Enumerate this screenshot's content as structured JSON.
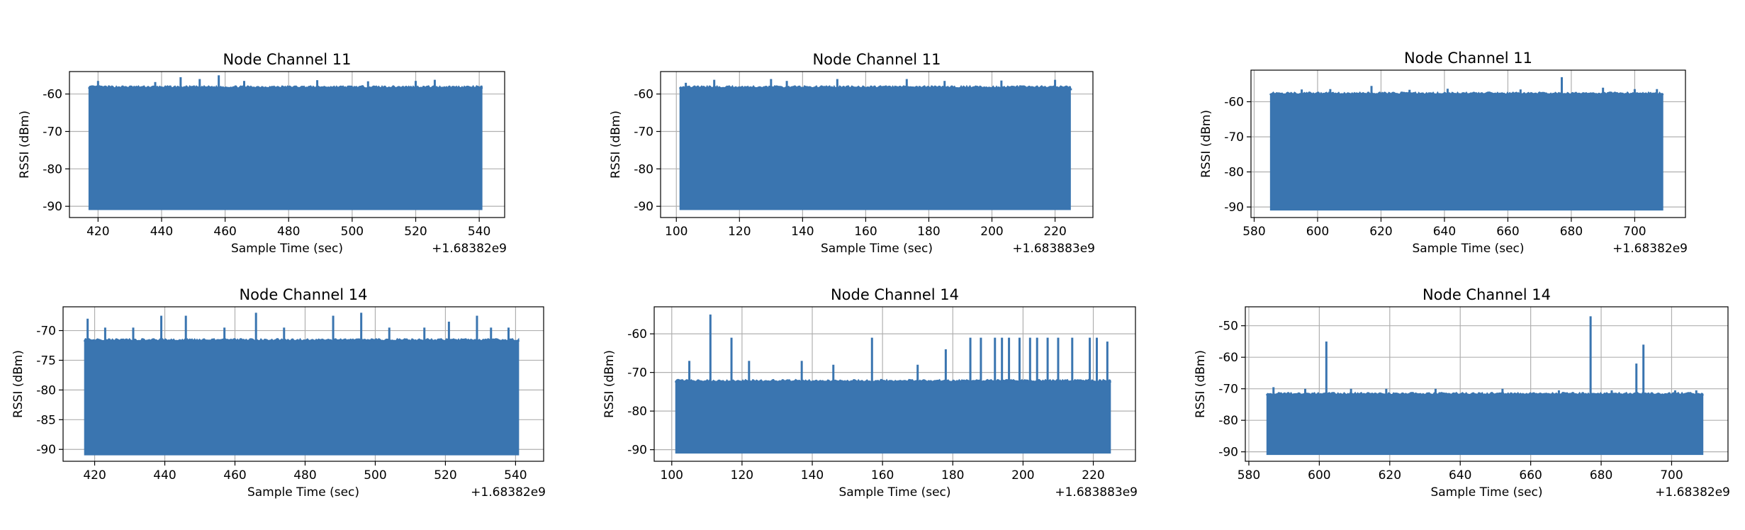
{
  "colors": {
    "series": "#3a75b0",
    "grid": "#b0b0b0",
    "axes": "#000000"
  },
  "chart_data": [
    {
      "type": "line",
      "title": "Node Channel 11",
      "xlabel": "Sample Time (sec)",
      "ylabel": "RSSI (dBm)",
      "x_offset_label": "+1.68382e9",
      "xlim": [
        411,
        548
      ],
      "ylim": [
        -93,
        -54
      ],
      "xticks": [
        420,
        440,
        460,
        480,
        500,
        520,
        540
      ],
      "yticks": [
        -60,
        -70,
        -80,
        -90
      ],
      "grid": true,
      "series": [
        {
          "x_range": [
            417,
            541
          ],
          "floor": -91,
          "ceiling": -58.5,
          "spikes": [
            [
              420,
              -56.5
            ],
            [
              438,
              -56.8
            ],
            [
              446,
              -55.5
            ],
            [
              452,
              -56
            ],
            [
              458,
              -55
            ],
            [
              466,
              -56.5
            ],
            [
              489,
              -56.3
            ],
            [
              505,
              -56.6
            ],
            [
              520,
              -56.5
            ],
            [
              526,
              -56.2
            ]
          ]
        }
      ]
    },
    {
      "type": "line",
      "title": "Node Channel 11",
      "xlabel": "Sample Time (sec)",
      "ylabel": "RSSI (dBm)",
      "x_offset_label": "+1.683883e9",
      "xlim": [
        95,
        232
      ],
      "ylim": [
        -93,
        -54
      ],
      "xticks": [
        100,
        120,
        140,
        160,
        180,
        200,
        220
      ],
      "yticks": [
        -60,
        -70,
        -80,
        -90
      ],
      "grid": true,
      "series": [
        {
          "x_range": [
            101,
            225
          ],
          "floor": -91,
          "ceiling": -58.5,
          "spikes": [
            [
              103,
              -57
            ],
            [
              112,
              -56.2
            ],
            [
              130,
              -56
            ],
            [
              135,
              -56.5
            ],
            [
              151,
              -56
            ],
            [
              173,
              -56
            ],
            [
              185,
              -56.5
            ],
            [
              203,
              -56.4
            ],
            [
              220,
              -56.2
            ],
            [
              225,
              -59
            ]
          ]
        }
      ]
    },
    {
      "type": "line",
      "title": "Node Channel 11",
      "xlabel": "Sample Time (sec)",
      "ylabel": "RSSI (dBm)",
      "x_offset_label": "+1.68382e9",
      "xlim": [
        579,
        716
      ],
      "ylim": [
        -93,
        -51
      ],
      "xticks": [
        580,
        600,
        620,
        640,
        660,
        680,
        700
      ],
      "yticks": [
        -60,
        -70,
        -80,
        -90
      ],
      "grid": true,
      "series": [
        {
          "x_range": [
            585,
            709
          ],
          "floor": -91,
          "ceiling": -58,
          "spikes": [
            [
              595,
              -56.5
            ],
            [
              604,
              -56.4
            ],
            [
              617,
              -55.5
            ],
            [
              629,
              -56.6
            ],
            [
              641,
              -56.3
            ],
            [
              664,
              -56.5
            ],
            [
              677,
              -53
            ],
            [
              690,
              -56
            ],
            [
              700,
              -56.4
            ],
            [
              707,
              -56.4
            ]
          ]
        }
      ]
    },
    {
      "type": "line",
      "title": "Node Channel 14",
      "xlabel": "Sample Time (sec)",
      "ylabel": "RSSI (dBm)",
      "x_offset_label": "+1.68382e9",
      "xlim": [
        411,
        548
      ],
      "ylim": [
        -92,
        -66
      ],
      "xticks": [
        420,
        440,
        460,
        480,
        500,
        520,
        540
      ],
      "yticks": [
        -70,
        -75,
        -80,
        -85,
        -90
      ],
      "grid": true,
      "series": [
        {
          "x_range": [
            417,
            541
          ],
          "floor": -91,
          "ceiling": -71.8,
          "spikes": [
            [
              418,
              -68
            ],
            [
              423,
              -69.5
            ],
            [
              431,
              -69.5
            ],
            [
              439,
              -67.5
            ],
            [
              446,
              -67.5
            ],
            [
              457,
              -69.5
            ],
            [
              466,
              -67
            ],
            [
              474,
              -69.5
            ],
            [
              488,
              -67.5
            ],
            [
              496,
              -67
            ],
            [
              504,
              -69.5
            ],
            [
              514,
              -69.5
            ],
            [
              521,
              -68.5
            ],
            [
              529,
              -67.5
            ],
            [
              533,
              -69.5
            ],
            [
              538,
              -69.5
            ]
          ]
        }
      ]
    },
    {
      "type": "line",
      "title": "Node Channel 14",
      "xlabel": "Sample Time (sec)",
      "ylabel": "RSSI (dBm)",
      "x_offset_label": "+1.683883e9",
      "xlim": [
        95,
        232
      ],
      "ylim": [
        -93,
        -53
      ],
      "xticks": [
        100,
        120,
        140,
        160,
        180,
        200,
        220
      ],
      "yticks": [
        -60,
        -70,
        -80,
        -90
      ],
      "grid": true,
      "series": [
        {
          "x_range": [
            101,
            225
          ],
          "floor": -91,
          "ceiling": -72.5,
          "spikes": [
            [
              105,
              -67
            ],
            [
              111,
              -55
            ],
            [
              117,
              -61
            ],
            [
              122,
              -67
            ],
            [
              137,
              -67
            ],
            [
              146,
              -68
            ],
            [
              157,
              -61
            ],
            [
              170,
              -68
            ],
            [
              178,
              -64
            ],
            [
              185,
              -61
            ],
            [
              188,
              -61
            ],
            [
              192,
              -61
            ],
            [
              194,
              -61
            ],
            [
              196,
              -61
            ],
            [
              199,
              -61
            ],
            [
              202,
              -61
            ],
            [
              204,
              -61
            ],
            [
              207,
              -61
            ],
            [
              210,
              -61
            ],
            [
              214,
              -61
            ],
            [
              219,
              -61
            ],
            [
              221,
              -61
            ],
            [
              224,
              -62
            ]
          ]
        }
      ]
    },
    {
      "type": "line",
      "title": "Node Channel 14",
      "xlabel": "Sample Time (sec)",
      "ylabel": "RSSI (dBm)",
      "x_offset_label": "+1.68382e9",
      "xlim": [
        579,
        716
      ],
      "ylim": [
        -93,
        -44
      ],
      "xticks": [
        580,
        600,
        620,
        640,
        660,
        680,
        700
      ],
      "yticks": [
        -50,
        -60,
        -70,
        -80,
        -90
      ],
      "grid": true,
      "series": [
        {
          "x_range": [
            585,
            709
          ],
          "floor": -91,
          "ceiling": -72,
          "spikes": [
            [
              587,
              -69.5
            ],
            [
              596,
              -70
            ],
            [
              602,
              -55
            ],
            [
              609,
              -70
            ],
            [
              619,
              -70
            ],
            [
              633,
              -70
            ],
            [
              652,
              -70
            ],
            [
              668,
              -70.5
            ],
            [
              677,
              -47
            ],
            [
              683,
              -70.5
            ],
            [
              690,
              -62
            ],
            [
              692,
              -56
            ],
            [
              701,
              -70.5
            ],
            [
              707,
              -70.5
            ]
          ]
        }
      ]
    }
  ]
}
